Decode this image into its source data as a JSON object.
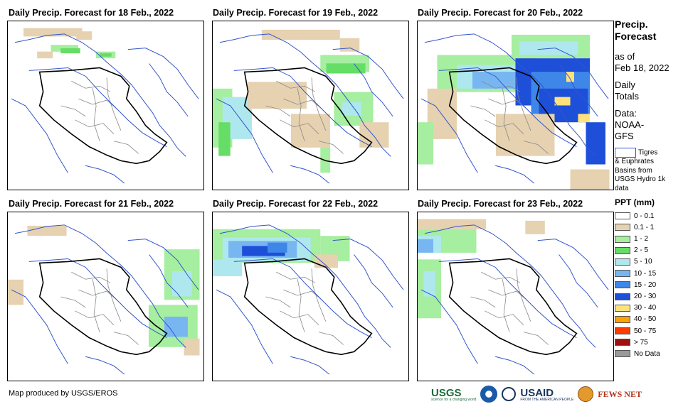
{
  "panels": [
    {
      "title": "Daily Precip. Forecast for 18 Feb., 2022",
      "cells": [
        {
          "c": "light",
          "x": 8,
          "y": 4,
          "w": 30,
          "h": 5
        },
        {
          "c": "light",
          "x": 35,
          "y": 6,
          "w": 8,
          "h": 5
        },
        {
          "c": "lgreen",
          "x": 22,
          "y": 14,
          "w": 14,
          "h": 4
        },
        {
          "c": "green",
          "x": 27,
          "y": 16,
          "w": 10,
          "h": 3
        },
        {
          "c": "lgreen",
          "x": 45,
          "y": 18,
          "w": 10,
          "h": 4
        },
        {
          "c": "green",
          "x": 47,
          "y": 19,
          "w": 6,
          "h": 2
        },
        {
          "c": "light",
          "x": 15,
          "y": 18,
          "w": 8,
          "h": 4
        }
      ]
    },
    {
      "title": "Daily Precip. Forecast for 19 Feb., 2022",
      "cells": [
        {
          "c": "light",
          "x": 25,
          "y": 5,
          "w": 40,
          "h": 6
        },
        {
          "c": "light",
          "x": 65,
          "y": 10,
          "w": 10,
          "h": 8
        },
        {
          "c": "lgreen",
          "x": 0,
          "y": 40,
          "w": 10,
          "h": 35
        },
        {
          "c": "lcyan",
          "x": 5,
          "y": 45,
          "w": 15,
          "h": 25
        },
        {
          "c": "green",
          "x": 3,
          "y": 60,
          "w": 6,
          "h": 20
        },
        {
          "c": "light",
          "x": 18,
          "y": 36,
          "w": 30,
          "h": 16
        },
        {
          "c": "lgreen",
          "x": 55,
          "y": 20,
          "w": 25,
          "h": 10
        },
        {
          "c": "green",
          "x": 58,
          "y": 25,
          "w": 20,
          "h": 6
        },
        {
          "c": "lgreen",
          "x": 62,
          "y": 42,
          "w": 20,
          "h": 20
        },
        {
          "c": "lcyan",
          "x": 66,
          "y": 48,
          "w": 10,
          "h": 8
        },
        {
          "c": "light",
          "x": 75,
          "y": 60,
          "w": 15,
          "h": 15
        },
        {
          "c": "lgreen",
          "x": 55,
          "y": 70,
          "w": 5,
          "h": 20
        },
        {
          "c": "light",
          "x": 40,
          "y": 55,
          "w": 20,
          "h": 20
        }
      ]
    },
    {
      "title": "Daily Precip. Forecast for 20 Feb., 2022",
      "cells": [
        {
          "c": "lgreen",
          "x": 48,
          "y": 8,
          "w": 40,
          "h": 14
        },
        {
          "c": "lcyan",
          "x": 52,
          "y": 12,
          "w": 30,
          "h": 8
        },
        {
          "c": "lgreen",
          "x": 10,
          "y": 20,
          "w": 50,
          "h": 22
        },
        {
          "c": "lcyan",
          "x": 20,
          "y": 26,
          "w": 40,
          "h": 14
        },
        {
          "c": "lblue",
          "x": 28,
          "y": 30,
          "w": 30,
          "h": 10
        },
        {
          "c": "blue",
          "x": 50,
          "y": 22,
          "w": 38,
          "h": 28
        },
        {
          "c": "mblue",
          "x": 58,
          "y": 30,
          "w": 30,
          "h": 25
        },
        {
          "c": "dblue",
          "x": 62,
          "y": 40,
          "w": 25,
          "h": 20
        },
        {
          "c": "yellow",
          "x": 76,
          "y": 30,
          "w": 4,
          "h": 6
        },
        {
          "c": "yellow",
          "x": 70,
          "y": 45,
          "w": 8,
          "h": 5
        },
        {
          "c": "yellow",
          "x": 82,
          "y": 55,
          "w": 6,
          "h": 5
        },
        {
          "c": "dblue",
          "x": 86,
          "y": 60,
          "w": 10,
          "h": 25
        },
        {
          "c": "light",
          "x": 5,
          "y": 40,
          "w": 15,
          "h": 30
        },
        {
          "c": "light",
          "x": 40,
          "y": 55,
          "w": 30,
          "h": 25
        },
        {
          "c": "lgreen",
          "x": 0,
          "y": 60,
          "w": 8,
          "h": 25
        },
        {
          "c": "light",
          "x": 78,
          "y": 88,
          "w": 20,
          "h": 12
        }
      ]
    },
    {
      "title": "Daily Precip. Forecast for 21 Feb., 2022",
      "cells": [
        {
          "c": "light",
          "x": 10,
          "y": 8,
          "w": 20,
          "h": 6
        },
        {
          "c": "lgreen",
          "x": 80,
          "y": 22,
          "w": 18,
          "h": 30
        },
        {
          "c": "lcyan",
          "x": 84,
          "y": 35,
          "w": 10,
          "h": 15
        },
        {
          "c": "lgreen",
          "x": 72,
          "y": 55,
          "w": 25,
          "h": 25
        },
        {
          "c": "lblue",
          "x": 80,
          "y": 62,
          "w": 12,
          "h": 12
        },
        {
          "c": "light",
          "x": 90,
          "y": 75,
          "w": 8,
          "h": 10
        },
        {
          "c": "light",
          "x": 0,
          "y": 40,
          "w": 8,
          "h": 15
        }
      ]
    },
    {
      "title": "Daily Precip. Forecast for 22 Feb., 2022",
      "cells": [
        {
          "c": "lgreen",
          "x": 0,
          "y": 10,
          "w": 55,
          "h": 20
        },
        {
          "c": "lcyan",
          "x": 5,
          "y": 15,
          "w": 45,
          "h": 14
        },
        {
          "c": "lblue",
          "x": 8,
          "y": 17,
          "w": 35,
          "h": 10
        },
        {
          "c": "blue",
          "x": 15,
          "y": 20,
          "w": 22,
          "h": 6
        },
        {
          "c": "mblue",
          "x": 28,
          "y": 18,
          "w": 10,
          "h": 6
        },
        {
          "c": "lgreen",
          "x": 55,
          "y": 14,
          "w": 15,
          "h": 15
        },
        {
          "c": "lcyan",
          "x": 0,
          "y": 28,
          "w": 15,
          "h": 10
        },
        {
          "c": "light",
          "x": 52,
          "y": 25,
          "w": 12,
          "h": 8
        }
      ]
    },
    {
      "title": "Daily Precip. Forecast for 23 Feb., 2022",
      "cells": [
        {
          "c": "light",
          "x": 0,
          "y": 4,
          "w": 35,
          "h": 6
        },
        {
          "c": "lgreen",
          "x": 0,
          "y": 10,
          "w": 30,
          "h": 14
        },
        {
          "c": "lcyan",
          "x": 0,
          "y": 14,
          "w": 12,
          "h": 10
        },
        {
          "c": "lblue",
          "x": 0,
          "y": 16,
          "w": 8,
          "h": 8
        },
        {
          "c": "lgreen",
          "x": 0,
          "y": 28,
          "w": 12,
          "h": 35
        },
        {
          "c": "lcyan",
          "x": 3,
          "y": 35,
          "w": 6,
          "h": 15
        },
        {
          "c": "light",
          "x": 55,
          "y": 5,
          "w": 10,
          "h": 8
        }
      ]
    }
  ],
  "side": {
    "title": "Precip. Forecast",
    "as_of_label": "as of",
    "as_of_date": "Feb 18, 2022",
    "totals": "Daily Totals",
    "data_label": "Data:",
    "data_source": "NOAA- GFS",
    "basin_line1": "Tigres",
    "basin_line2": "& Euphrates Basins from USGS Hydro 1k data",
    "legend_title": "PPT (mm)",
    "legend": [
      {
        "label": "0 - 0.1",
        "color": "#ffffff"
      },
      {
        "label": "0.1 - 1",
        "color": "#e6d2b0"
      },
      {
        "label": "1 - 2",
        "color": "#a6eea0"
      },
      {
        "label": "2 - 5",
        "color": "#66dd66"
      },
      {
        "label": "5 - 10",
        "color": "#aee8ee"
      },
      {
        "label": "10 - 15",
        "color": "#78b6f2"
      },
      {
        "label": "15 - 20",
        "color": "#3e86e8"
      },
      {
        "label": "20 - 30",
        "color": "#1e4fd8"
      },
      {
        "label": "30 - 40",
        "color": "#ffe27a"
      },
      {
        "label": "40 - 50",
        "color": "#ffa200"
      },
      {
        "label": "50 - 75",
        "color": "#ff3c00"
      },
      {
        "label": "> 75",
        "color": "#a01010"
      },
      {
        "label": "No Data",
        "color": "#999999"
      }
    ]
  },
  "colors": {
    "light": "#e6d2b0",
    "lgreen": "#a6eea0",
    "green": "#66dd66",
    "lcyan": "#aee8ee",
    "lblue": "#78b6f2",
    "mblue": "#3e86e8",
    "blue": "#1e4fd8",
    "dblue": "#1e4fd8",
    "yellow": "#ffe27a",
    "river": "#3355cc",
    "border": "#000000",
    "admin": "#888888"
  },
  "credit": "Map produced by USGS/EROS",
  "logos": {
    "usgs": "USGS",
    "usgs_tag": "science for a changing world",
    "usaid": "USAID",
    "usaid_tag": "FROM THE AMERICAN PEOPLE",
    "fews": "FEWS NET"
  }
}
